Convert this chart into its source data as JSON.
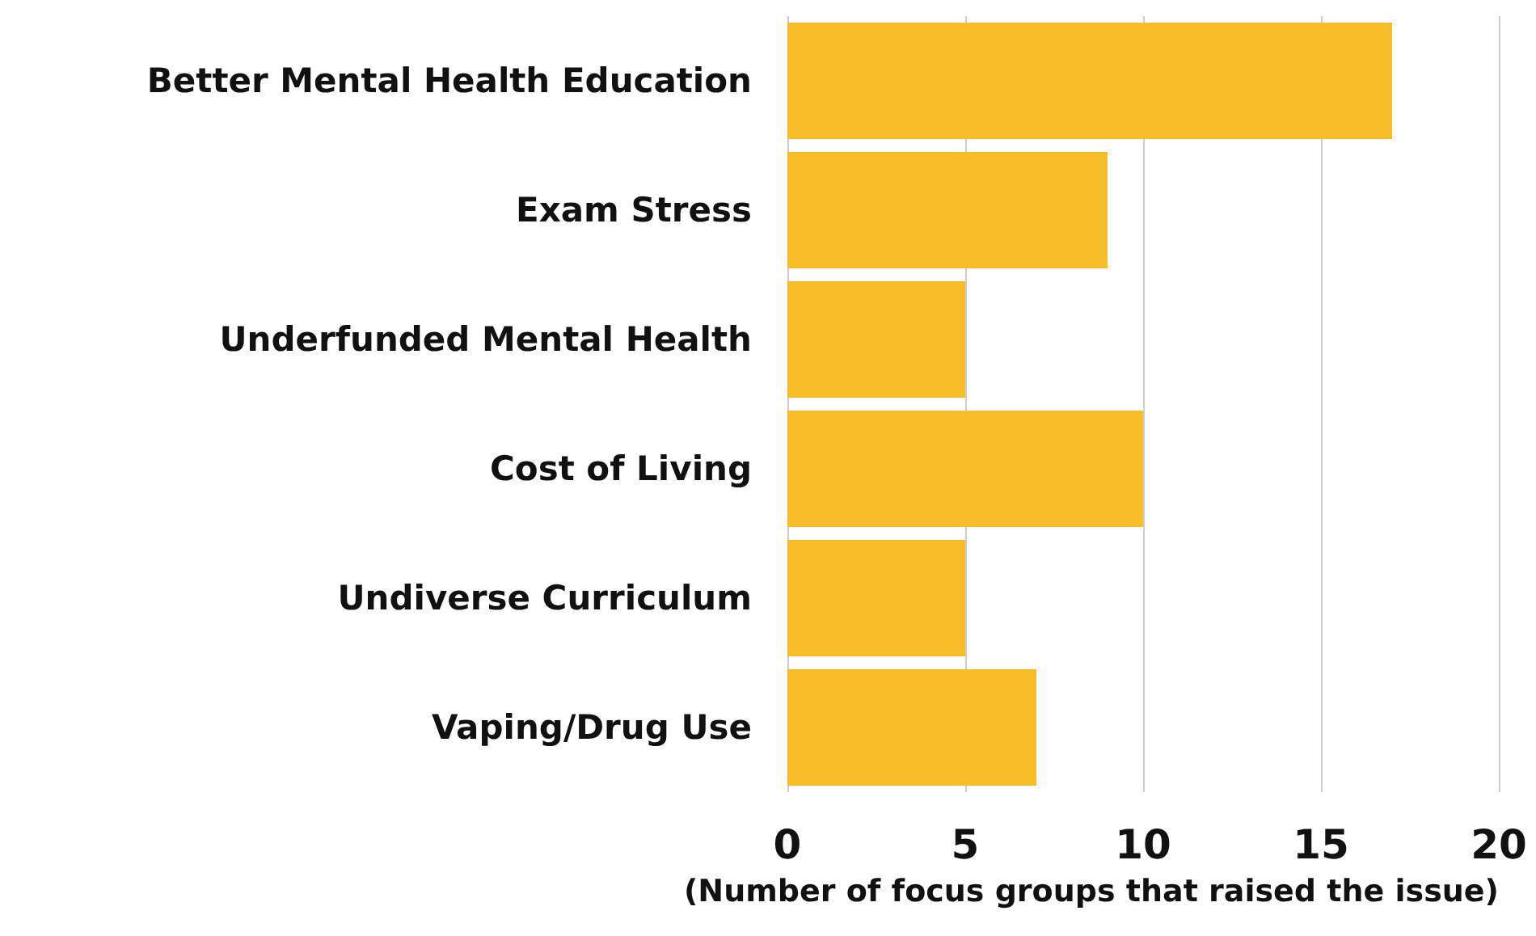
{
  "chart_data": {
    "type": "bar",
    "orientation": "horizontal",
    "categories": [
      "Better Mental Health Education",
      "Exam Stress",
      "Underfunded Mental Health",
      "Cost of Living",
      "Undiverse Curriculum",
      "Vaping/Drug Use"
    ],
    "values": [
      17,
      9,
      5,
      10,
      5,
      7
    ],
    "color": "#f9bd2a",
    "xlabel": "(Number of focus groups that raised the issue)",
    "xlim": [
      0,
      20
    ],
    "xticks": [
      0,
      5,
      10,
      15,
      20
    ],
    "grid": "x"
  }
}
